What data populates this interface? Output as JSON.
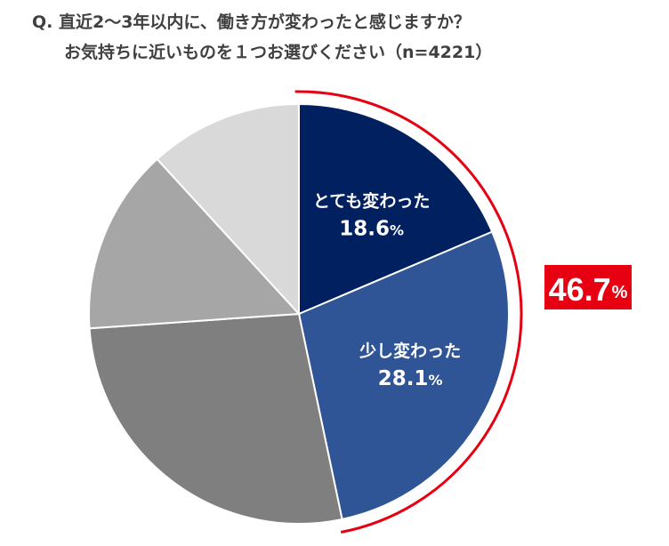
{
  "title": {
    "line1": "Q. 直近2～3年以内に、働き方が変わったと感じますか？",
    "line2": "お気持ちに近いものを１つお選びください（n=4221）"
  },
  "chart_data": {
    "type": "pie",
    "start": "12 o'clock",
    "direction": "clockwise",
    "slices": [
      {
        "label": "とても変わった",
        "value": 18.6,
        "color": "#002060",
        "value_text": "18.6",
        "unit": "%"
      },
      {
        "label": "少し変わった",
        "value": 28.1,
        "color": "#2f5597",
        "value_text": "28.1",
        "unit": "%"
      },
      {
        "label": "",
        "value": 27.2,
        "color": "#7f7f7f"
      },
      {
        "label": "",
        "value": 14.3,
        "color": "#a6a6a6"
      },
      {
        "label": "",
        "value": 11.8,
        "color": "#d9d9d9"
      }
    ],
    "total_callout": {
      "value_text": "46.7",
      "unit": "%",
      "color": "#e60012",
      "bracket_color": "#e60012"
    }
  }
}
